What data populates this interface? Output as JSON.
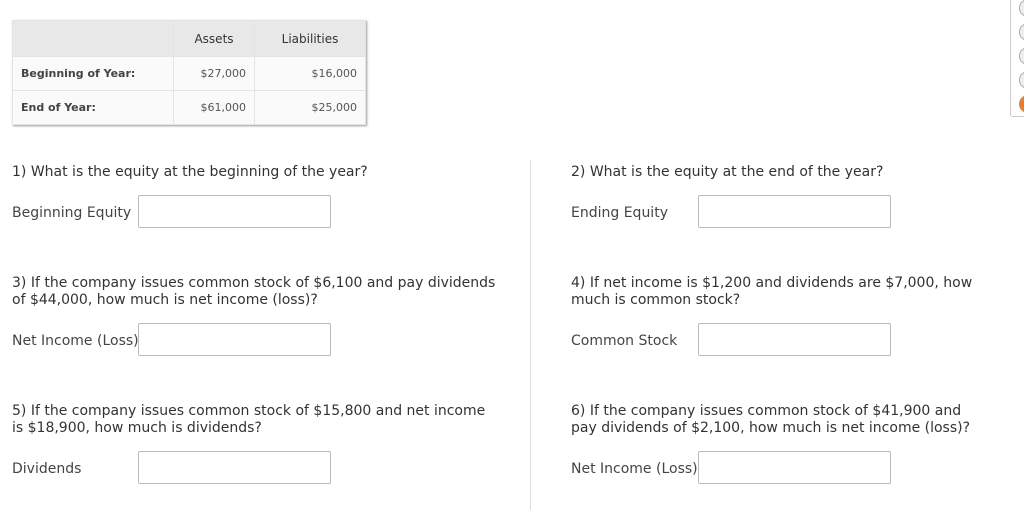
{
  "table": {
    "headers": [
      "",
      "Assets",
      "Liabilities"
    ],
    "rows": [
      [
        "Beginning of Year:",
        "$27,000",
        "$16,000"
      ],
      [
        "End of Year:",
        "$61,000",
        "$25,000"
      ]
    ]
  },
  "questions": [
    {
      "text": "1) What is the equity at the beginning of the year?",
      "label": "Beginning Equity",
      "value": ""
    },
    {
      "text": "2) What is the equity at the end of the year?",
      "label": "Ending Equity",
      "value": ""
    },
    {
      "text": "3) If the company issues common stock of $6,100 and pay dividends of $44,000, how much is net income (loss)?",
      "label": "Net Income (Loss)",
      "value": ""
    },
    {
      "text": "4) If net income is $1,200 and dividends are $7,000, how much is common stock?",
      "label": "Common Stock",
      "value": ""
    },
    {
      "text": "5) If the company issues common stock of $15,800 and net income is $18,900, how much is dividends?",
      "label": "Dividends",
      "value": ""
    },
    {
      "text": "6) If the company issues common stock of $41,900 and pay dividends of $2,100, how much is net income (loss)?",
      "label": "Net Income (Loss)",
      "value": ""
    }
  ],
  "side_nav": {
    "active_index": 4,
    "active_color": "#f47b20"
  }
}
